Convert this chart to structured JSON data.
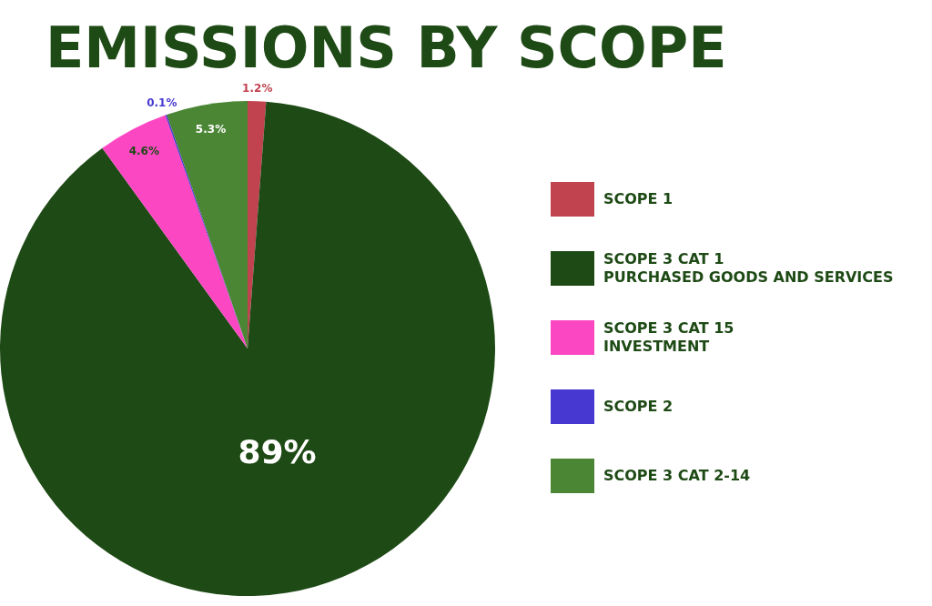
{
  "chart_data": {
    "type": "pie",
    "title": "EMISSIONS BY SCOPE",
    "categories": [
      "SCOPE 1",
      "SCOPE 3 CAT 1\nPURCHASED GOODS AND SERVICES",
      "SCOPE 3 CAT 15\nINVESTMENT",
      "SCOPE 2",
      "SCOPE 3 CAT 2-14"
    ],
    "values": [
      1.2,
      89,
      4.6,
      0.1,
      5.3
    ],
    "colors": [
      "#c0434f",
      "#1e4a15",
      "#fc47c3",
      "#4638d0",
      "#4a8634"
    ],
    "value_labels": [
      "1.2%",
      "89%",
      "4.6%",
      "0.1%",
      "5.3%"
    ],
    "legend": "right"
  }
}
